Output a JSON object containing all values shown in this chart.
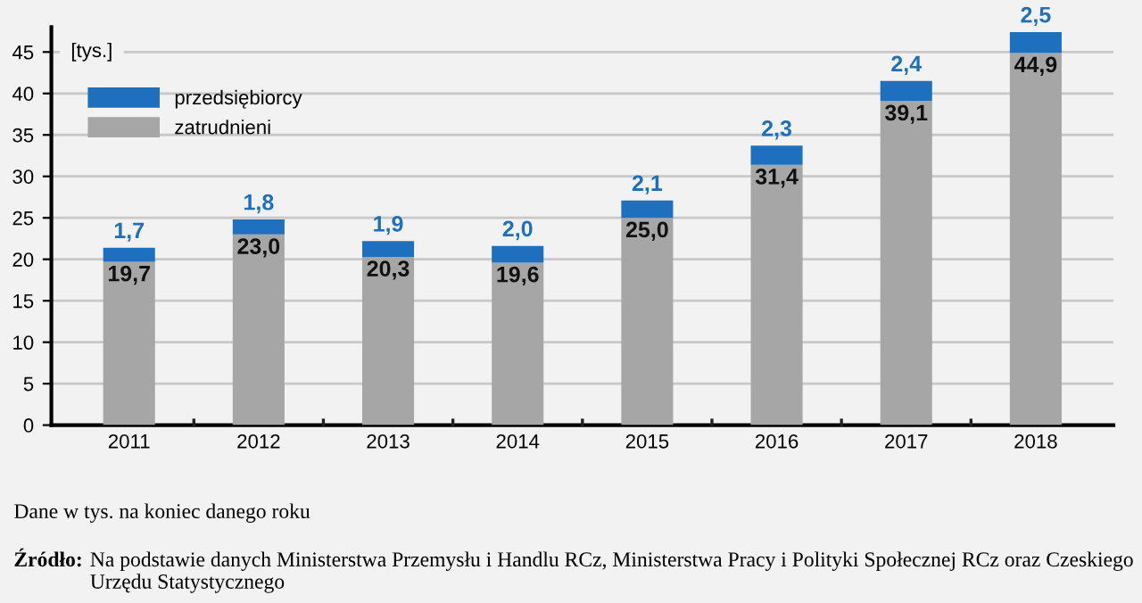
{
  "chart_data": {
    "type": "bar",
    "stacked": true,
    "ylabel": "[tys.]",
    "categories": [
      "2011",
      "2012",
      "2013",
      "2014",
      "2015",
      "2016",
      "2017",
      "2018"
    ],
    "series": [
      {
        "name": "zatrudnieni",
        "color": "#a6a6a6",
        "values": [
          19.7,
          23.0,
          20.3,
          19.6,
          25.0,
          31.4,
          39.1,
          44.9
        ],
        "value_labels": [
          "19,7",
          "23,0",
          "20,3",
          "19,6",
          "25,0",
          "31,4",
          "39,1",
          "44,9"
        ]
      },
      {
        "name": "przedsiębiorcy",
        "color": "#1f6fbf",
        "values": [
          1.7,
          1.8,
          1.9,
          2.0,
          2.1,
          2.3,
          2.4,
          2.5
        ],
        "value_labels": [
          "1,7",
          "1,8",
          "1,9",
          "2,0",
          "2,1",
          "2,3",
          "2,4",
          "2,5"
        ]
      }
    ],
    "ylim": [
      0,
      48
    ],
    "yticks": [
      0,
      5,
      10,
      15,
      20,
      25,
      30,
      35,
      40,
      45
    ],
    "grid": "y",
    "legend": "top left",
    "annotations": [
      "Dane w tys. na koniec danego roku",
      "Źródło: Na podstawie danych Ministerstwa Przemysłu i Handlu RCz, Ministerstwa Pracy i Polityki Społecznej RCz oraz Czeskiego Urzędu Statystycznego"
    ]
  }
}
